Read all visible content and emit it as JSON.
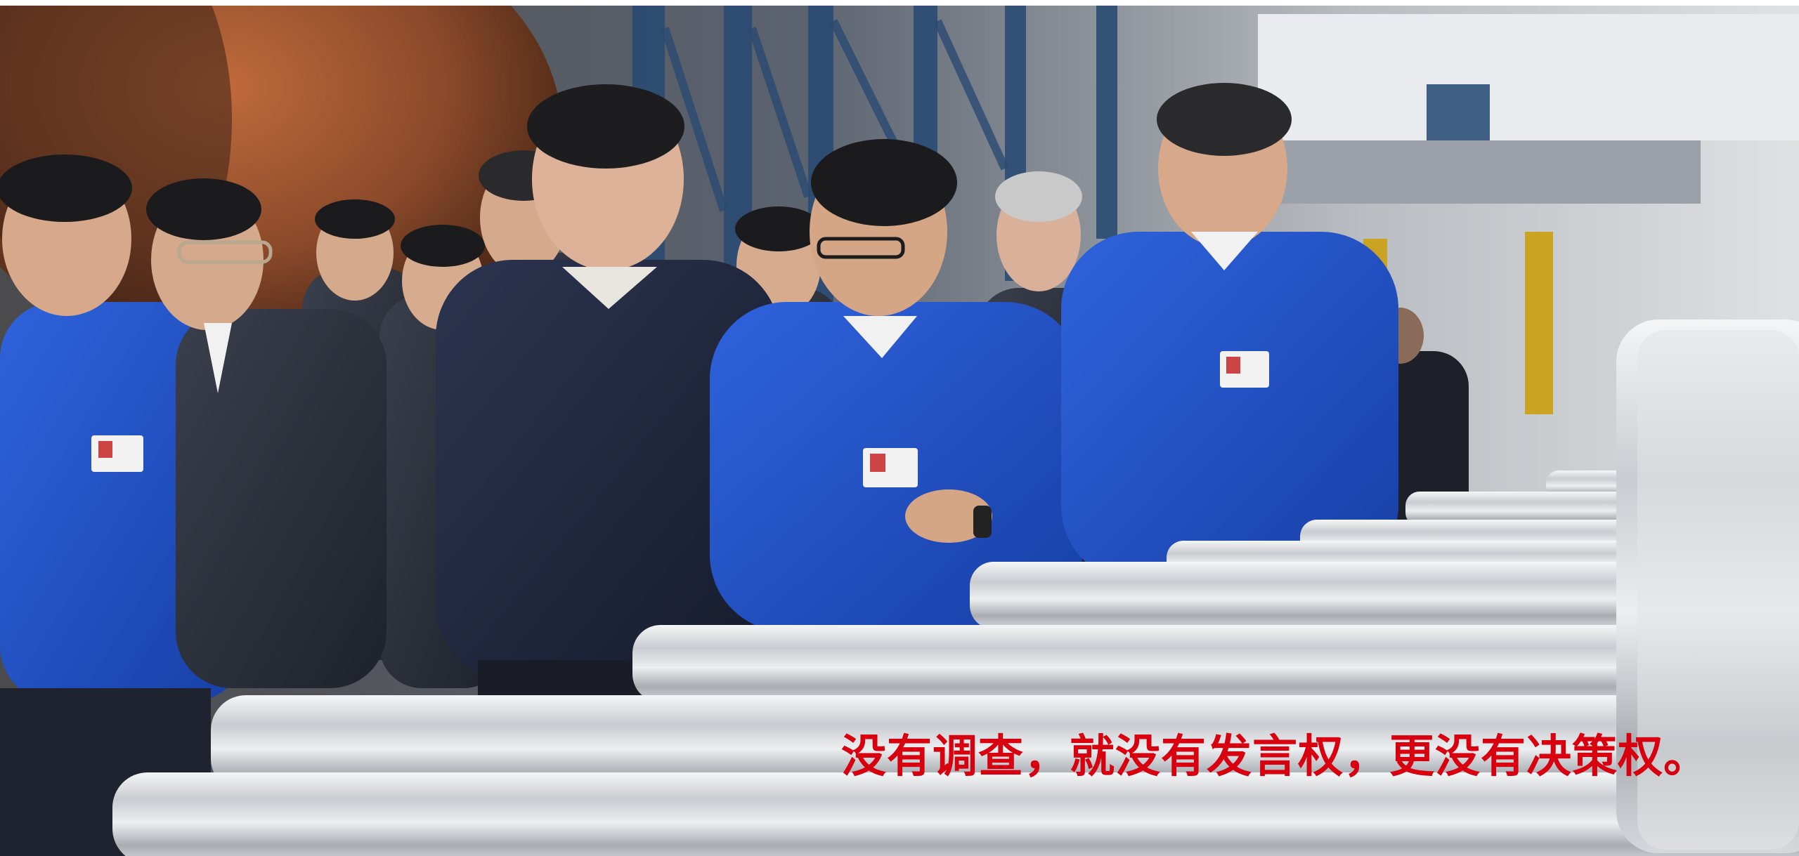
{
  "caption": {
    "text": "没有调查，就没有发言权，更没有决策权。",
    "color": "#d8000f"
  },
  "photo": {
    "subject": "factory-tour-photo"
  },
  "colors": {
    "caption_red": "#d8000f",
    "uniform_blue": "#1f4fc4",
    "steel_silver": "#c9ccd0",
    "rusted_pipe": "#8b4a2a",
    "girder_blue": "#2a4a72"
  }
}
